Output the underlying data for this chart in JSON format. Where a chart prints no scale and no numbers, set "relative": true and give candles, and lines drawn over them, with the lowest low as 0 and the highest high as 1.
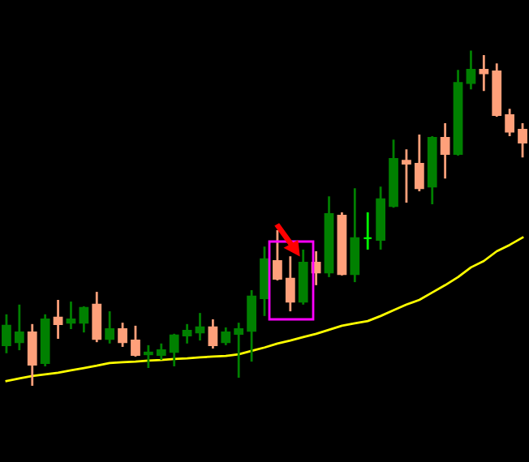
{
  "chart_data": {
    "type": "candlestick",
    "relative": true,
    "categories": [
      null,
      null,
      null,
      null,
      null,
      null,
      null,
      null,
      null,
      null,
      null,
      null,
      null,
      null,
      null,
      null,
      null,
      null,
      null,
      null,
      null,
      null,
      null,
      null,
      null,
      null,
      null,
      null,
      null,
      null,
      null,
      null,
      null,
      null,
      null,
      null,
      null,
      null,
      null,
      null,
      null
    ],
    "ohlc": [
      [
        0.121,
        0.213,
        0.097,
        0.179
      ],
      [
        0.13,
        0.242,
        0.106,
        0.159
      ],
      [
        0.159,
        0.184,
        0.0,
        0.063
      ],
      [
        0.068,
        0.213,
        0.058,
        0.198
      ],
      [
        0.203,
        0.256,
        0.14,
        0.184
      ],
      [
        0.188,
        0.251,
        0.169,
        0.198
      ],
      [
        0.188,
        0.237,
        0.159,
        0.232
      ],
      [
        0.242,
        0.28,
        0.13,
        0.14
      ],
      [
        0.14,
        0.222,
        0.126,
        0.169
      ],
      [
        0.169,
        0.188,
        0.116,
        0.13
      ],
      [
        0.135,
        0.179,
        0.087,
        0.092
      ],
      [
        0.094,
        0.121,
        0.053,
        0.099
      ],
      [
        0.092,
        0.126,
        0.077,
        0.106
      ],
      [
        0.101,
        0.155,
        0.058,
        0.15
      ],
      [
        0.15,
        0.184,
        0.126,
        0.164
      ],
      [
        0.159,
        0.217,
        0.135,
        0.174
      ],
      [
        0.174,
        0.198,
        0.111,
        0.121
      ],
      [
        0.13,
        0.174,
        0.121,
        0.159
      ],
      [
        0.155,
        0.188,
        0.024,
        0.169
      ],
      [
        0.164,
        0.285,
        0.072,
        0.266
      ],
      [
        0.261,
        0.415,
        0.208,
        0.377
      ],
      [
        0.372,
        0.464,
        0.314,
        0.319
      ],
      [
        0.319,
        0.386,
        0.222,
        0.251
      ],
      [
        0.251,
        0.406,
        0.242,
        0.367
      ],
      [
        0.367,
        0.401,
        0.3,
        0.338
      ],
      [
        0.338,
        0.565,
        0.324,
        0.512
      ],
      [
        0.507,
        0.517,
        0.329,
        0.333
      ],
      [
        0.333,
        0.589,
        0.309,
        0.44
      ],
      [
        0.44,
        0.517,
        0.406,
        0.44
      ],
      [
        0.435,
        0.594,
        0.406,
        0.556
      ],
      [
        0.536,
        0.734,
        0.531,
        0.676
      ],
      [
        0.671,
        0.705,
        0.546,
        0.662
      ],
      [
        0.662,
        0.749,
        0.58,
        0.589
      ],
      [
        0.594,
        0.744,
        0.541,
        0.739
      ],
      [
        0.739,
        0.783,
        0.618,
        0.691
      ],
      [
        0.691,
        0.942,
        0.686,
        0.903
      ],
      [
        0.903,
        1.0,
        0.884,
        0.942
      ],
      [
        0.942,
        0.986,
        0.879,
        0.932
      ],
      [
        0.937,
        0.961,
        0.802,
        0.807
      ],
      [
        0.807,
        0.826,
        0.744,
        0.758
      ],
      [
        0.763,
        0.783,
        0.681,
        0.725
      ]
    ],
    "colors": [
      "#008000",
      "#008000",
      "#ffa07a",
      "#008000",
      "#ffa07a",
      "#008000",
      "#008000",
      "#ffa07a",
      "#008000",
      "#ffa07a",
      "#ffa07a",
      "#008000",
      "#008000",
      "#008000",
      "#008000",
      "#008000",
      "#ffa07a",
      "#008000",
      "#008000",
      "#008000",
      "#008000",
      "#ffa07a",
      "#ffa07a",
      "#008000",
      "#ffa07a",
      "#008000",
      "#ffa07a",
      "#008000",
      "#00ff00",
      "#008000",
      "#008000",
      "#ffa07a",
      "#ffa07a",
      "#008000",
      "#ffa07a",
      "#008000",
      "#008000",
      "#ffa07a",
      "#ffa07a",
      "#ffa07a",
      "#ffa07a"
    ],
    "series": [
      {
        "type": "line",
        "color": "#ffff00",
        "values": [
          0.014,
          0.022,
          0.029,
          0.034,
          0.039,
          0.046,
          0.053,
          0.06,
          0.068,
          0.07,
          0.072,
          0.075,
          0.077,
          0.08,
          0.082,
          0.085,
          0.087,
          0.089,
          0.094,
          0.104,
          0.114,
          0.126,
          0.135,
          0.145,
          0.155,
          0.167,
          0.179,
          0.186,
          0.193,
          0.208,
          0.225,
          0.242,
          0.256,
          0.278,
          0.3,
          0.324,
          0.353,
          0.372,
          0.401,
          0.42,
          0.442
        ]
      }
    ]
  }
}
